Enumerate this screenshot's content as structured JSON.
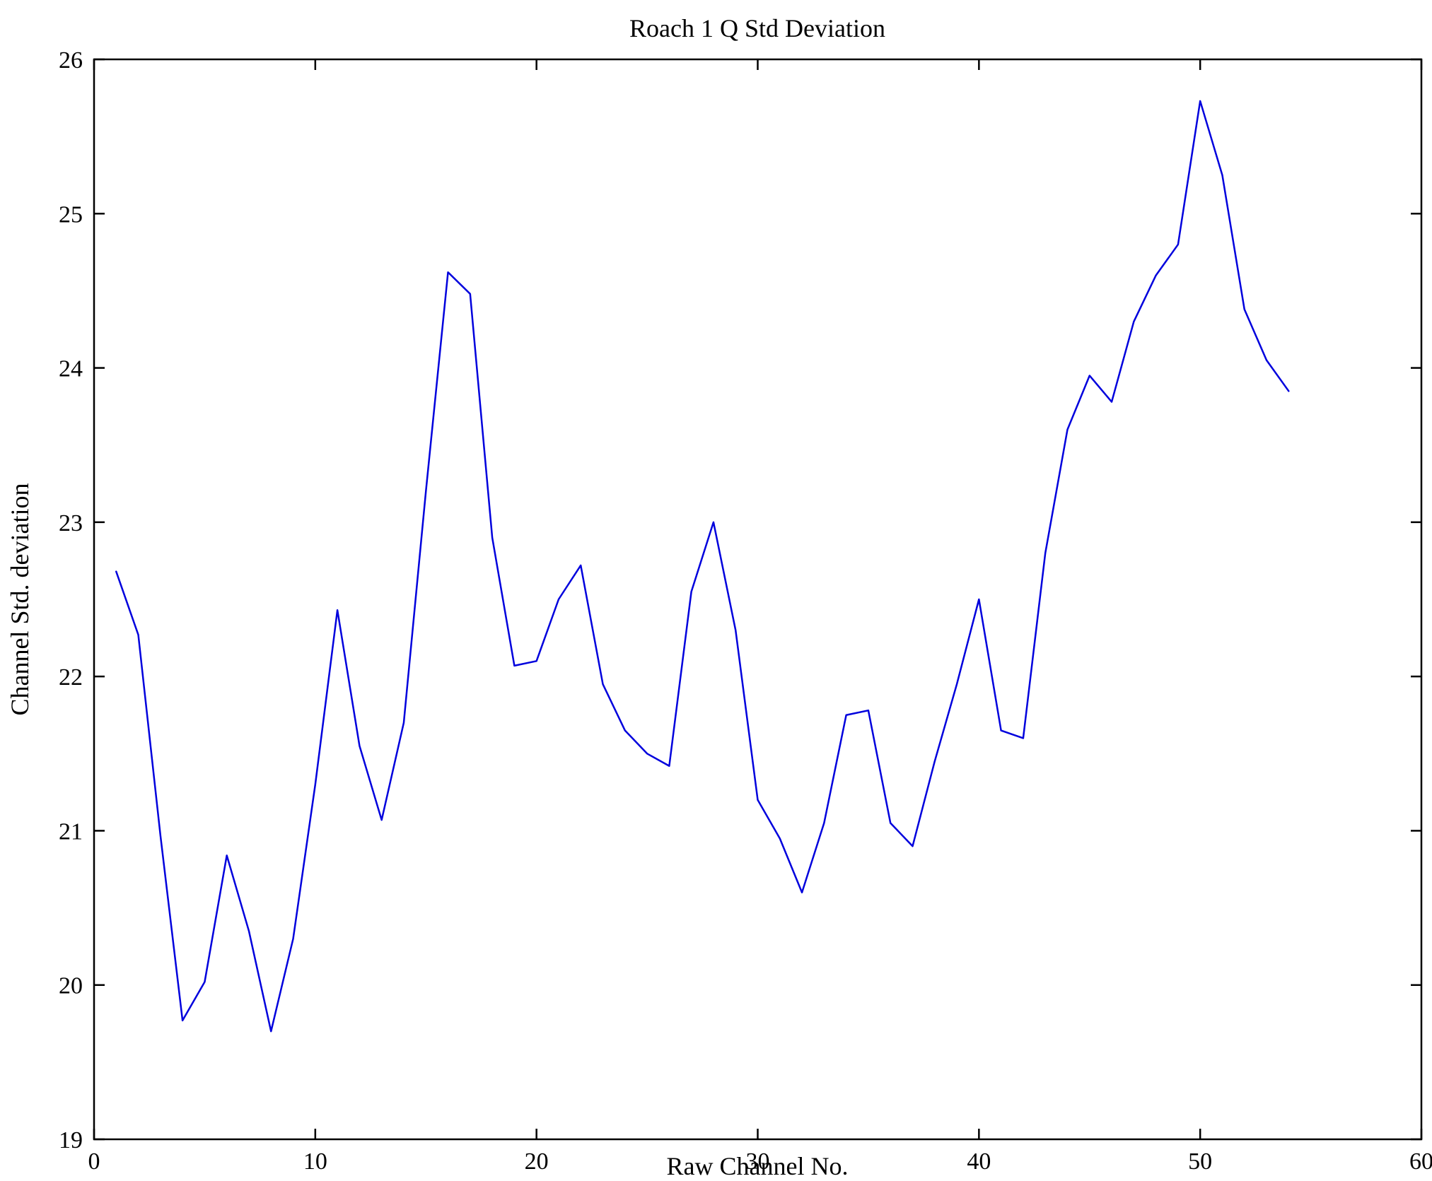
{
  "chart_data": {
    "type": "line",
    "title": "Roach 1 Q Std Deviation",
    "xlabel": "Raw Channel No.",
    "ylabel": "Channel Std. deviation",
    "xlim": [
      0,
      60
    ],
    "ylim": [
      19,
      26
    ],
    "xticks": [
      0,
      10,
      20,
      30,
      40,
      50,
      60
    ],
    "yticks": [
      19,
      20,
      21,
      22,
      23,
      24,
      25,
      26
    ],
    "grid": false,
    "legend": "none",
    "line_color": "#0000dd",
    "series_name": "Channel Std. deviation",
    "x": [
      1,
      2,
      3,
      4,
      5,
      6,
      7,
      8,
      9,
      10,
      11,
      12,
      13,
      14,
      15,
      16,
      17,
      18,
      19,
      20,
      21,
      22,
      23,
      24,
      25,
      26,
      27,
      28,
      29,
      30,
      31,
      32,
      33,
      34,
      35,
      36,
      37,
      38,
      39,
      40,
      41,
      42,
      43,
      44,
      45,
      46,
      47,
      48,
      49,
      50,
      51,
      52,
      53,
      54
    ],
    "values": [
      22.68,
      22.27,
      20.97,
      19.77,
      20.02,
      20.84,
      20.35,
      19.7,
      20.3,
      21.3,
      22.43,
      21.55,
      21.07,
      21.7,
      23.2,
      24.62,
      24.48,
      22.9,
      22.07,
      22.1,
      22.5,
      22.72,
      21.95,
      21.65,
      21.5,
      21.42,
      22.55,
      23.0,
      22.3,
      21.2,
      20.95,
      20.6,
      21.05,
      21.75,
      21.78,
      21.05,
      20.9,
      21.45,
      21.95,
      22.5,
      21.65,
      21.6,
      22.8,
      23.6,
      23.95,
      23.78,
      24.3,
      24.6,
      24.8,
      25.73,
      25.25,
      24.38,
      24.05,
      23.85
    ]
  }
}
